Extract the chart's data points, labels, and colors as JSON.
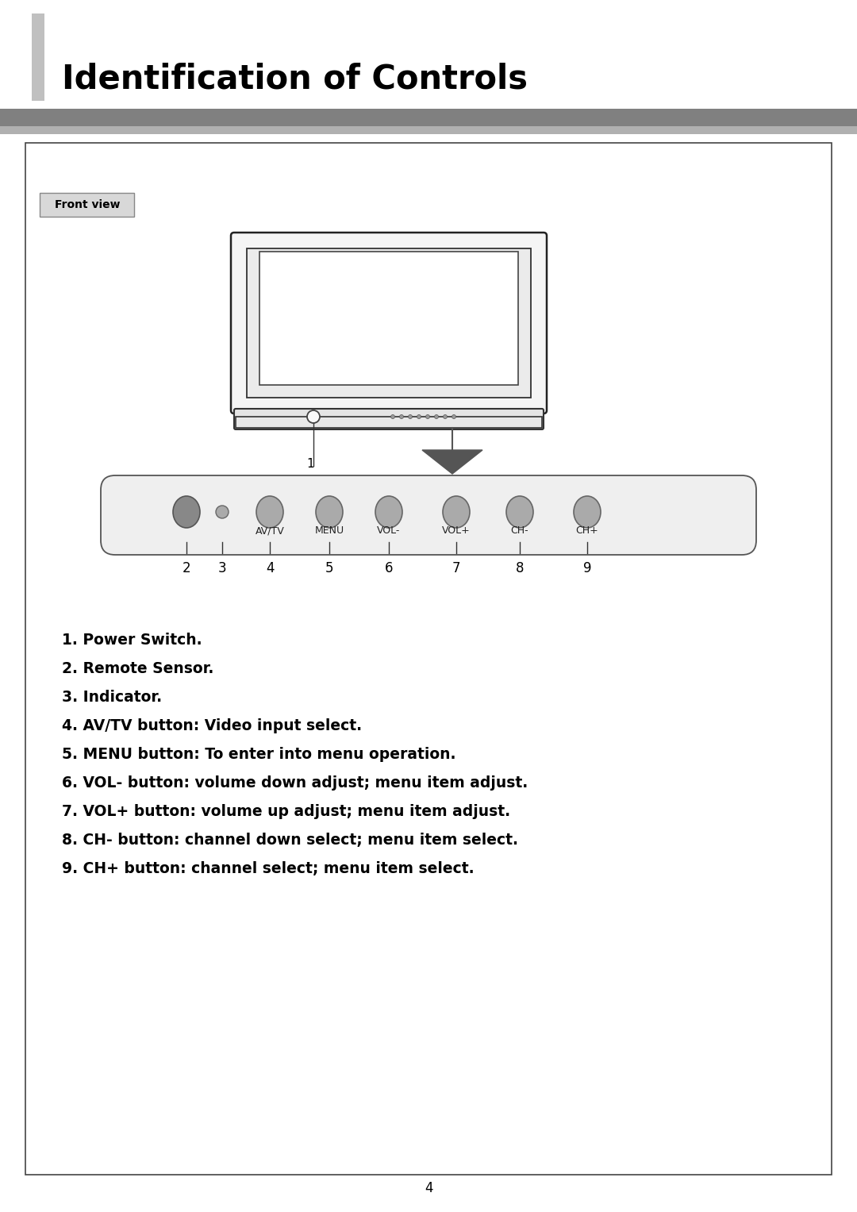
{
  "title": "Identification of Controls",
  "section_label": "Front view",
  "page_number": "4",
  "bg_color": "#ffffff",
  "title_color": "#000000",
  "title_fontsize": 30,
  "descriptions": [
    "1. Power Switch.",
    "2. Remote Sensor.",
    "3. Indicator.",
    "4. AV/TV button: Video input select.",
    "5. MENU button: To enter into menu operation.",
    "6. VOL- button: volume down adjust; menu item adjust.",
    "7. VOL+ button: volume up adjust; menu item adjust.",
    "8. CH- button: channel down select; menu item select.",
    "9. CH+ button: channel select; menu item select."
  ],
  "button_labels": [
    "AV/TV",
    "MENU",
    "VOL-",
    "VOL+",
    "CH-",
    "CH+"
  ],
  "button_numbers": [
    "2",
    "3",
    "4",
    "5",
    "6",
    "7",
    "8",
    "9"
  ]
}
